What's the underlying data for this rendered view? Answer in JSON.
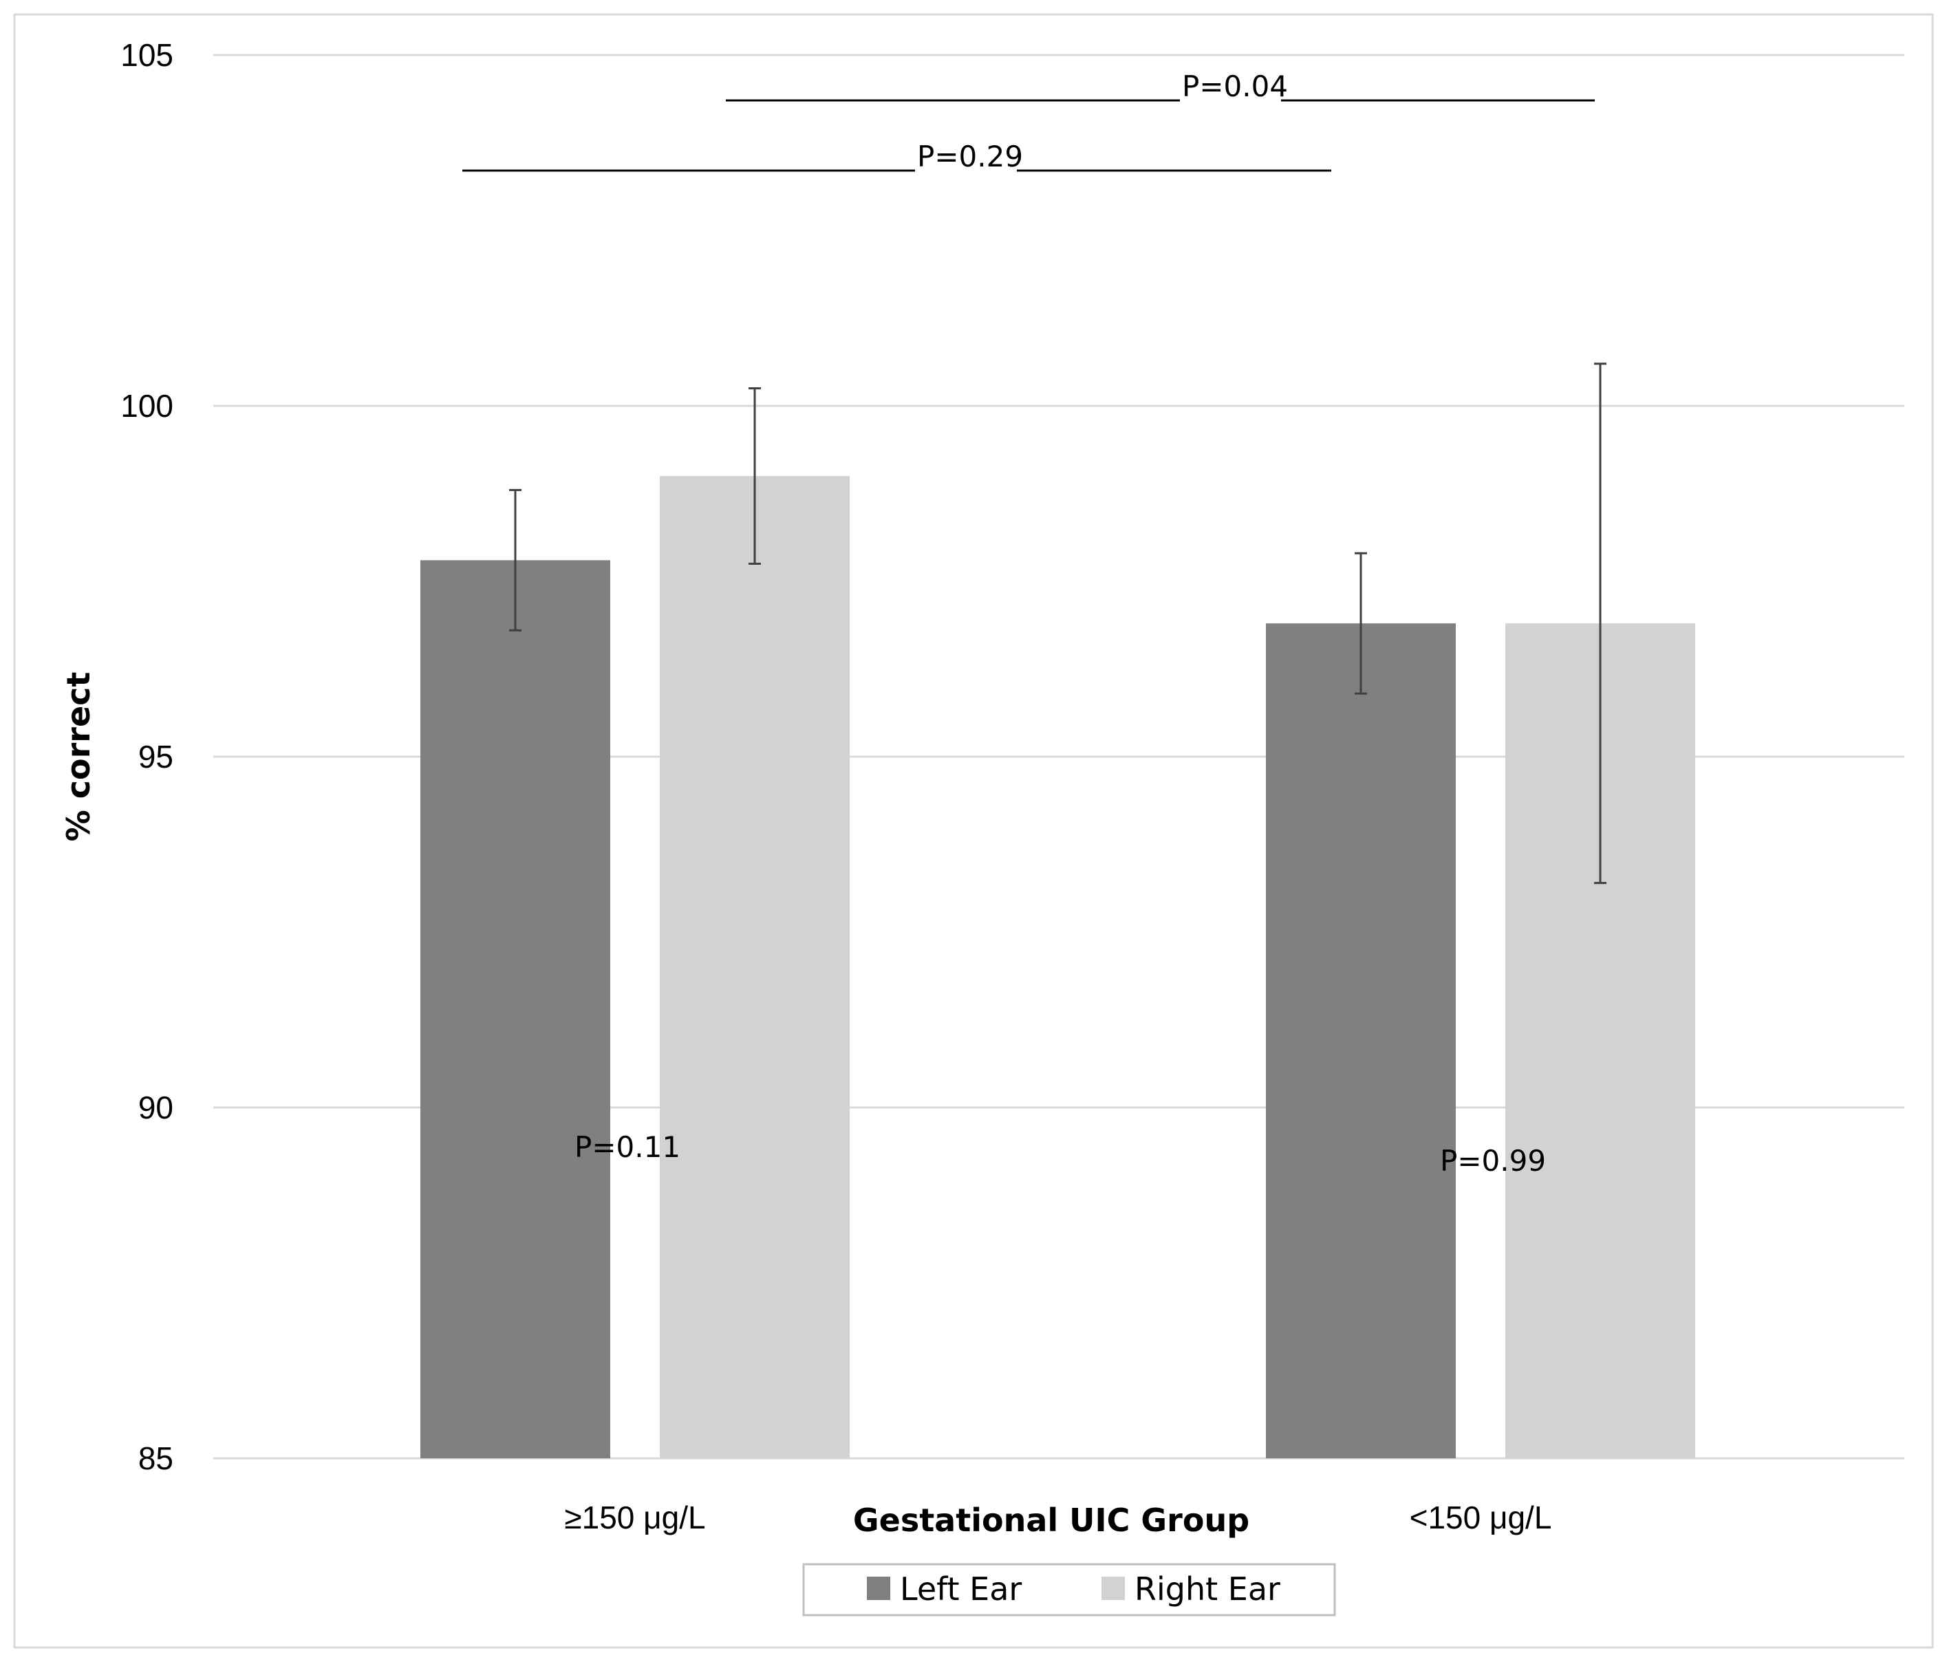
{
  "chart_data": {
    "type": "bar",
    "title": "",
    "xlabel": "Gestational UIC Group",
    "ylabel": "% correct",
    "ylim": [
      85,
      105
    ],
    "yticks": [
      85,
      90,
      95,
      100,
      105
    ],
    "grid": true,
    "categories": [
      "≥150 μg/L",
      "<150  μg/L"
    ],
    "series": [
      {
        "name": "Left Ear",
        "color": "#808080",
        "values": [
          97.8,
          96.9
        ],
        "error": [
          1.0,
          1.0
        ]
      },
      {
        "name": "Right Ear",
        "color": "#d3d1d1",
        "values": [
          99.0,
          96.9
        ],
        "error": [
          1.25,
          3.7
        ]
      }
    ],
    "annotations": {
      "within_group": [
        "P=0.11",
        "P=0.99"
      ],
      "between_left": "P=0.29",
      "between_right": "P=0.04"
    },
    "legend_position": "bottom-center"
  }
}
